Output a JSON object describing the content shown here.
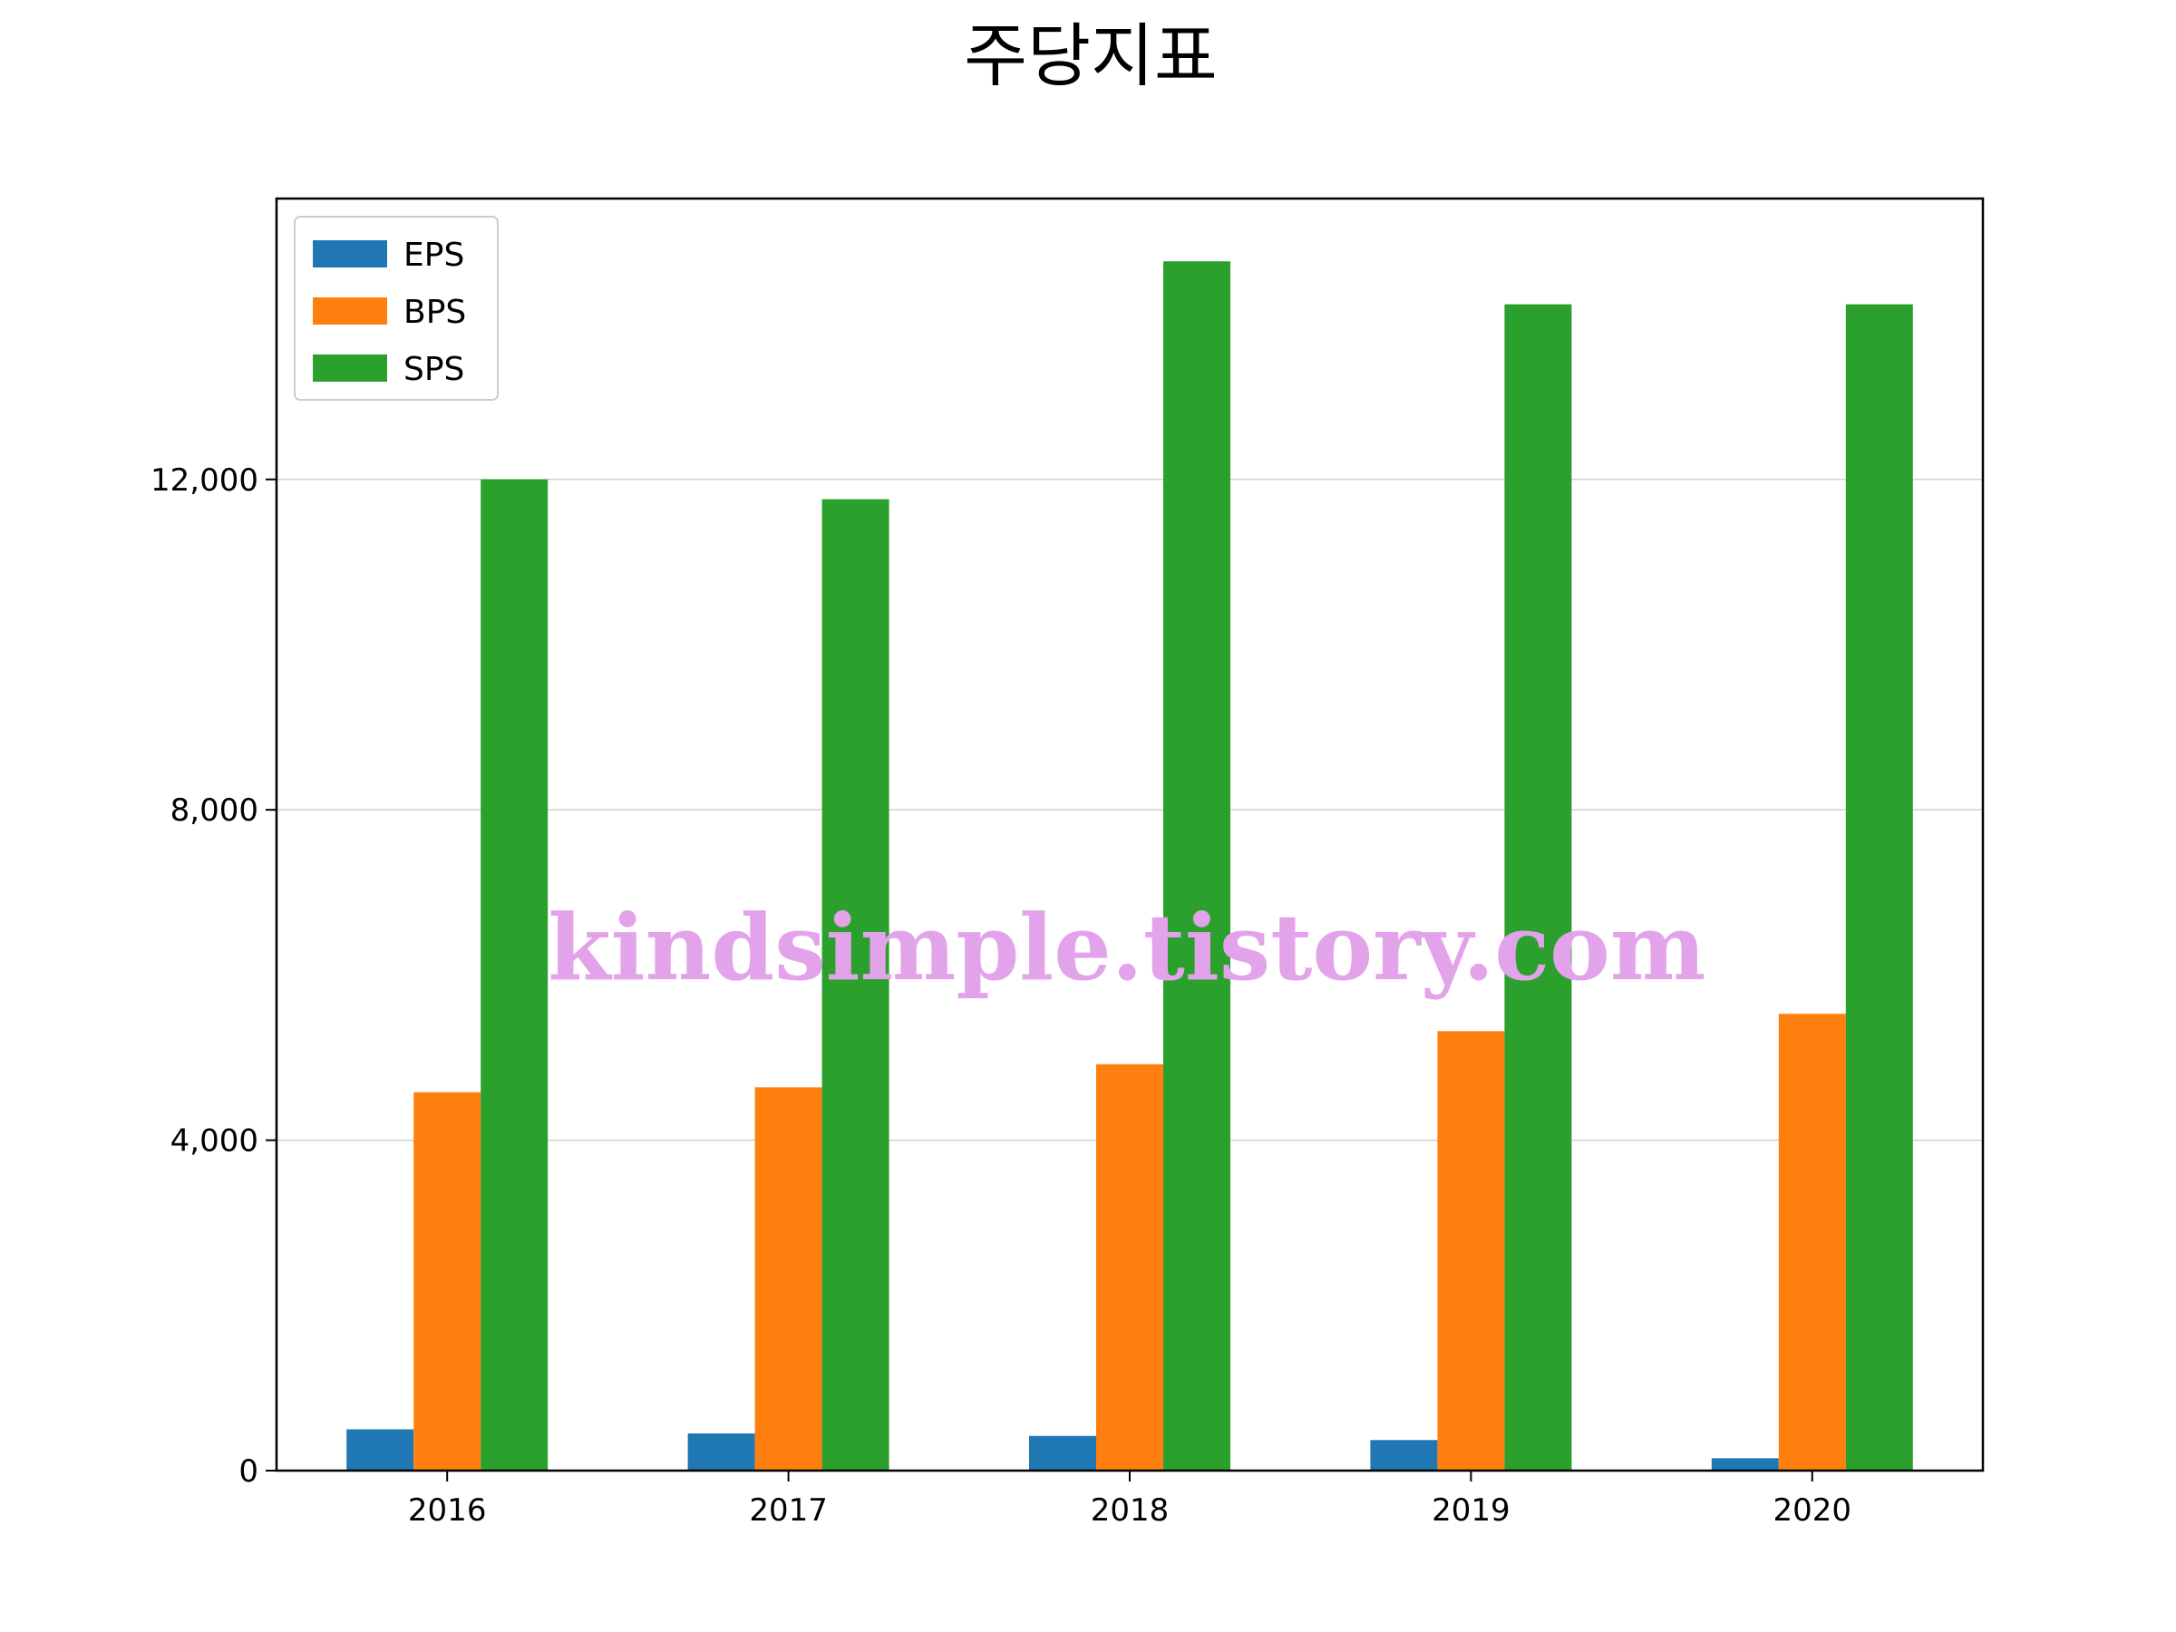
{
  "chart_data": {
    "type": "bar",
    "title": "주당지표",
    "xlabel": "",
    "ylabel": "",
    "categories": [
      "2016",
      "2017",
      "2018",
      "2019",
      "2020"
    ],
    "series": [
      {
        "name": "EPS",
        "color": "#1f77b4",
        "values": [
          500,
          450,
          420,
          370,
          150
        ]
      },
      {
        "name": "BPS",
        "color": "#ff7f0e",
        "values": [
          4580,
          4640,
          4920,
          5320,
          5530
        ]
      },
      {
        "name": "SPS",
        "color": "#2ca02c",
        "values": [
          12000,
          11760,
          14640,
          14120,
          14120
        ]
      }
    ],
    "ylim": [
      0,
      15400
    ],
    "yticks": [
      0,
      4000,
      8000,
      12000
    ],
    "ytick_labels": [
      "0",
      "4,000",
      "8,000",
      "12,000"
    ],
    "grid": "horizontal",
    "legend_position": "top-left"
  },
  "watermark": "kindsimple.tistory.com"
}
